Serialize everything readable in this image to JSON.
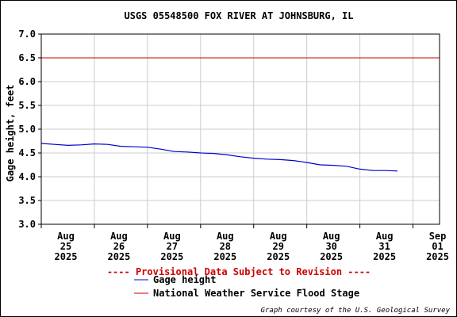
{
  "chart_data": {
    "type": "line",
    "title": "USGS 05548500 FOX RIVER AT JOHNSBURG, IL",
    "ylabel": "Gage height, feet",
    "xlabel": "",
    "ylim": [
      3.0,
      7.0
    ],
    "yticks": [
      "7.0",
      "6.5",
      "6.0",
      "5.5",
      "5.0",
      "4.5",
      "4.0",
      "3.5",
      "3.0"
    ],
    "xlim": [
      "2025-08-25",
      "2025-09-01T12:00"
    ],
    "xticks": [
      {
        "date": "2025-08-25",
        "lines": [
          "Aug",
          "25",
          "2025"
        ]
      },
      {
        "date": "2025-08-26",
        "lines": [
          "Aug",
          "26",
          "2025"
        ]
      },
      {
        "date": "2025-08-27",
        "lines": [
          "Aug",
          "27",
          "2025"
        ]
      },
      {
        "date": "2025-08-28",
        "lines": [
          "Aug",
          "28",
          "2025"
        ]
      },
      {
        "date": "2025-08-29",
        "lines": [
          "Aug",
          "29",
          "2025"
        ]
      },
      {
        "date": "2025-08-30",
        "lines": [
          "Aug",
          "30",
          "2025"
        ]
      },
      {
        "date": "2025-08-31",
        "lines": [
          "Aug",
          "31",
          "2025"
        ]
      },
      {
        "date": "2025-09-01",
        "lines": [
          "Sep",
          "01",
          "2025"
        ]
      }
    ],
    "grid": true,
    "series": [
      {
        "name": "Gage height",
        "color": "#0000cc",
        "points": [
          [
            "2025-08-25T00:00",
            4.7
          ],
          [
            "2025-08-25T06:00",
            4.68
          ],
          [
            "2025-08-25T12:00",
            4.66
          ],
          [
            "2025-08-25T18:00",
            4.67
          ],
          [
            "2025-08-26T00:00",
            4.69
          ],
          [
            "2025-08-26T06:00",
            4.68
          ],
          [
            "2025-08-26T12:00",
            4.64
          ],
          [
            "2025-08-26T18:00",
            4.63
          ],
          [
            "2025-08-27T00:00",
            4.62
          ],
          [
            "2025-08-27T06:00",
            4.58
          ],
          [
            "2025-08-27T12:00",
            4.53
          ],
          [
            "2025-08-27T18:00",
            4.52
          ],
          [
            "2025-08-28T00:00",
            4.5
          ],
          [
            "2025-08-28T06:00",
            4.49
          ],
          [
            "2025-08-28T12:00",
            4.46
          ],
          [
            "2025-08-28T18:00",
            4.42
          ],
          [
            "2025-08-29T00:00",
            4.39
          ],
          [
            "2025-08-29T06:00",
            4.37
          ],
          [
            "2025-08-29T12:00",
            4.36
          ],
          [
            "2025-08-29T18:00",
            4.34
          ],
          [
            "2025-08-30T00:00",
            4.3
          ],
          [
            "2025-08-30T06:00",
            4.25
          ],
          [
            "2025-08-30T12:00",
            4.24
          ],
          [
            "2025-08-30T18:00",
            4.22
          ],
          [
            "2025-08-31T00:00",
            4.16
          ],
          [
            "2025-08-31T06:00",
            4.13
          ],
          [
            "2025-08-31T12:00",
            4.13
          ],
          [
            "2025-08-31T17:00",
            4.12
          ]
        ]
      },
      {
        "name": "National Weather Service Flood Stage",
        "color": "#cc0000",
        "constant": 6.5
      }
    ],
    "notice": "---- Provisional Data Subject to Revision ----",
    "legend": [
      {
        "label": "Gage height",
        "color": "#0000cc"
      },
      {
        "label": "National Weather Service Flood Stage",
        "color": "#cc0000"
      }
    ],
    "credit": "Graph courtesy of the U.S. Geological Survey"
  }
}
